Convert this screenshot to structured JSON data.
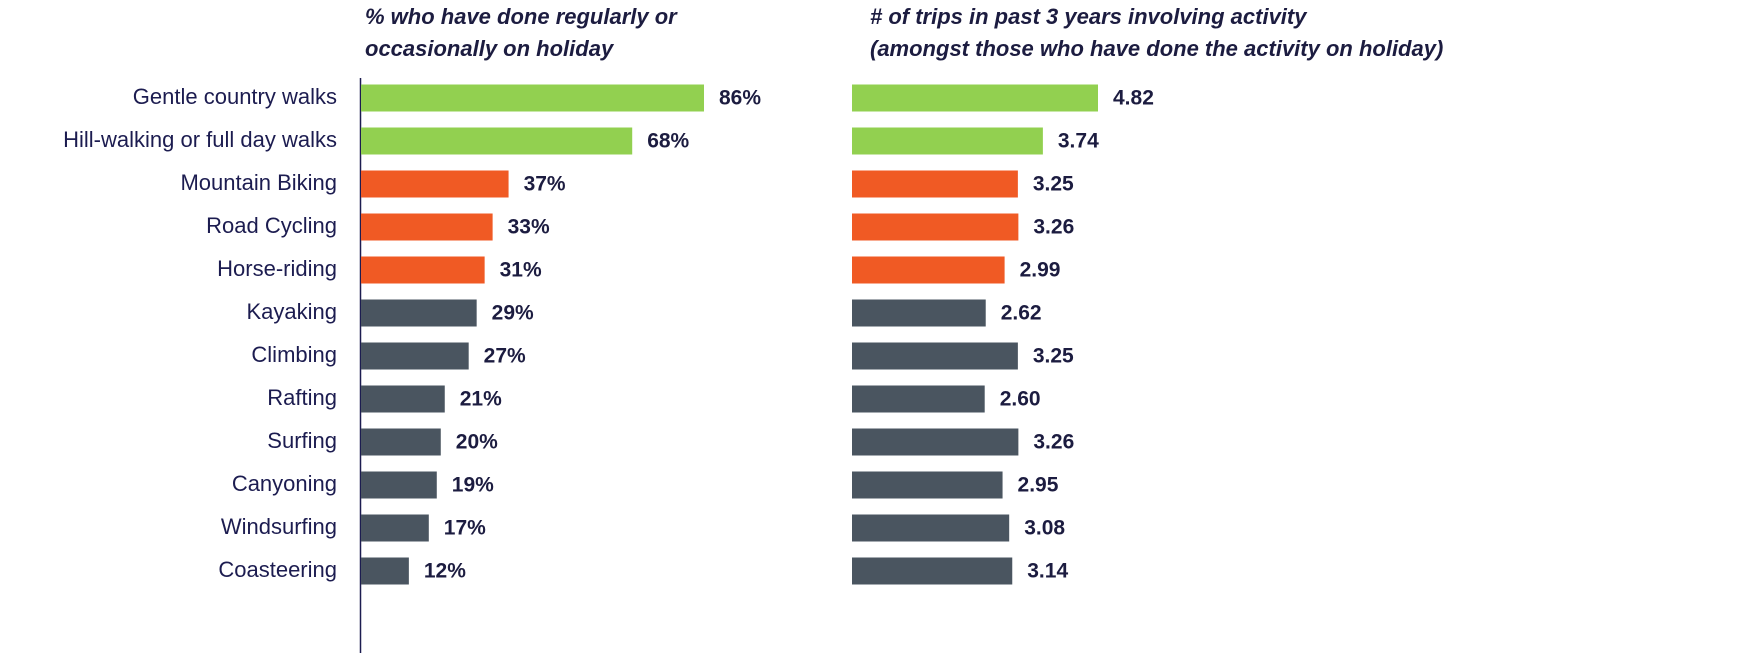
{
  "chart_data": [
    {
      "type": "bar",
      "title": [
        "% who have done regularly or",
        "occasionally on holiday"
      ],
      "categories": [
        "Gentle country walks",
        "Hill-walking or full day walks",
        "Mountain Biking",
        "Road Cycling",
        "Horse-riding",
        "Kayaking",
        "Climbing",
        "Rafting",
        "Surfing",
        "Canyoning",
        "Windsurfing",
        "Coasteering"
      ],
      "values": [
        86,
        68,
        37,
        33,
        31,
        29,
        27,
        21,
        20,
        19,
        17,
        12
      ],
      "value_labels": [
        "86%",
        "68%",
        "37%",
        "33%",
        "31%",
        "29%",
        "27%",
        "21%",
        "20%",
        "19%",
        "17%",
        "12%"
      ],
      "colors": [
        "#92d050",
        "#92d050",
        "#f05a24",
        "#f05a24",
        "#f05a24",
        "#4a5560",
        "#4a5560",
        "#4a5560",
        "#4a5560",
        "#4a5560",
        "#4a5560",
        "#4a5560"
      ]
    },
    {
      "type": "bar",
      "title": [
        "# of trips in past 3 years involving activity",
        "(amongst those who have done the activity on holiday)"
      ],
      "values": [
        4.82,
        3.74,
        3.25,
        3.26,
        2.99,
        2.62,
        3.25,
        2.6,
        3.26,
        2.95,
        3.08,
        3.14
      ],
      "value_labels": [
        "4.82",
        "3.74",
        "3.25",
        "3.26",
        "2.99",
        "2.62",
        "3.25",
        "2.60",
        "3.26",
        "2.95",
        "3.08",
        "3.14"
      ],
      "colors": [
        "#92d050",
        "#92d050",
        "#f05a24",
        "#f05a24",
        "#f05a24",
        "#4a5560",
        "#4a5560",
        "#4a5560",
        "#4a5560",
        "#4a5560",
        "#4a5560",
        "#4a5560"
      ]
    }
  ]
}
